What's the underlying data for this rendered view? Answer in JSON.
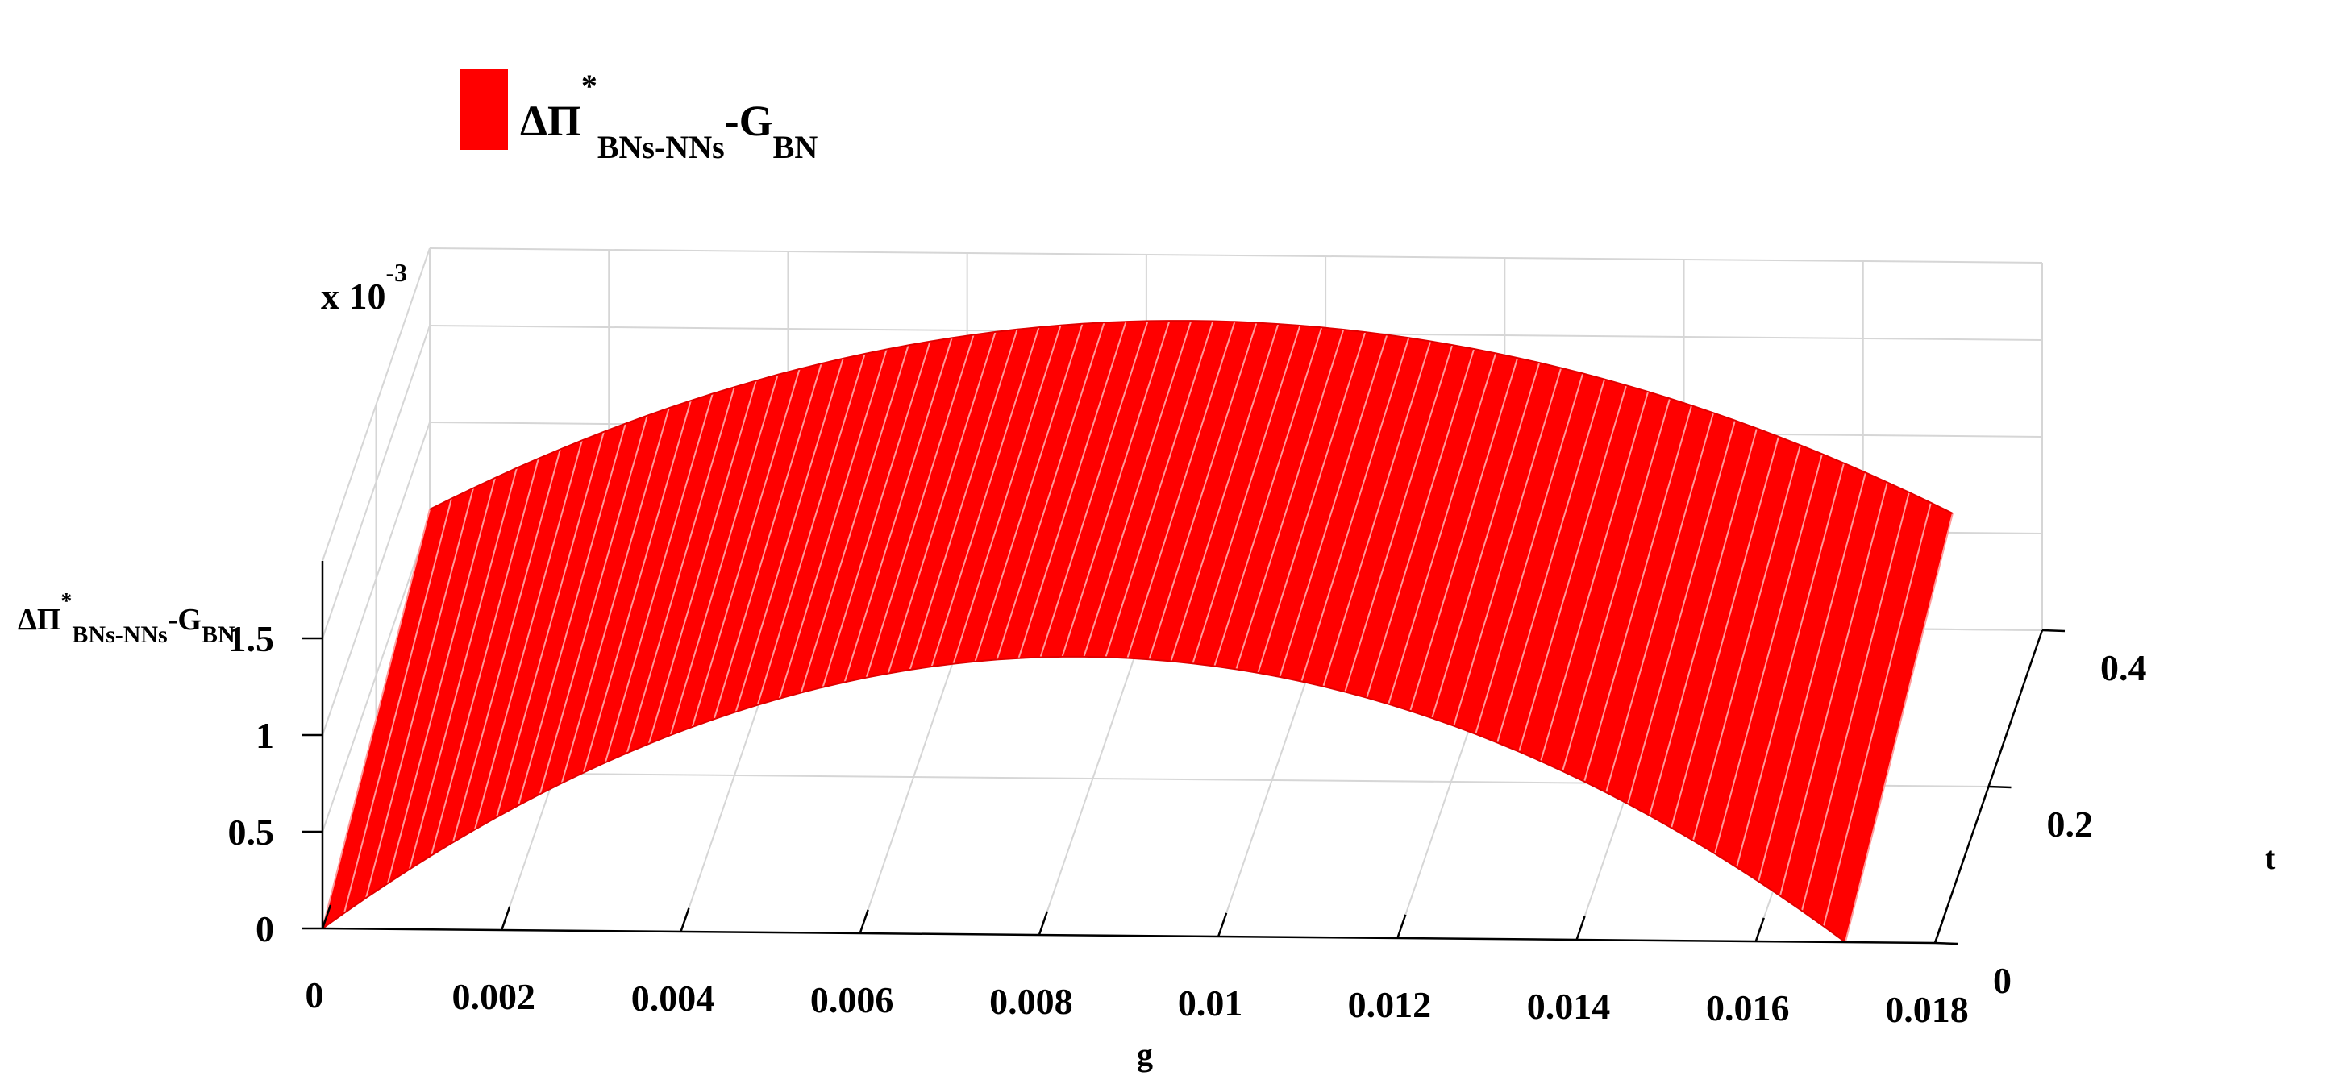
{
  "chart_data": {
    "type": "surface",
    "legend": {
      "label_main": "ΔΠ",
      "label_sup": "*",
      "label_sub1": "BNs-NNs",
      "label_mid": "-G",
      "label_sub2": "BN",
      "color": "#ff0000",
      "placement": "top-left"
    },
    "zlabel": {
      "main": "ΔΠ",
      "sup": "*",
      "sub1": "BNs-NNs",
      "mid": "-G",
      "sub2": "BN"
    },
    "xlabel": "g",
    "ylabel": "t",
    "z_multiplier": {
      "base": "x 10",
      "exp": "-3"
    },
    "x_ticks": [
      "0",
      "0.002",
      "0.004",
      "0.006",
      "0.008",
      "0.01",
      "0.012",
      "0.014",
      "0.016",
      "0.018"
    ],
    "y_ticks": [
      "0",
      "0.2",
      "0.4"
    ],
    "z_ticks": [
      "0",
      "0.5",
      "1",
      "1.5"
    ],
    "xlim": [
      0,
      0.018
    ],
    "ylim": [
      0,
      0.4
    ],
    "zlim": [
      0,
      1.9
    ],
    "grid": true,
    "surface_color": "#ff0000",
    "mesh_color": "#ff9a9a",
    "surface": {
      "g_range": [
        0,
        0.017
      ],
      "t_range": [
        0,
        0.4
      ],
      "peak_g": 0.0085,
      "peak_z_at_t0": 1.44,
      "peak_z_at_t04": 1.56,
      "z_end_at_t0": 0.0,
      "z_end_at_t04": 0.6
    }
  }
}
